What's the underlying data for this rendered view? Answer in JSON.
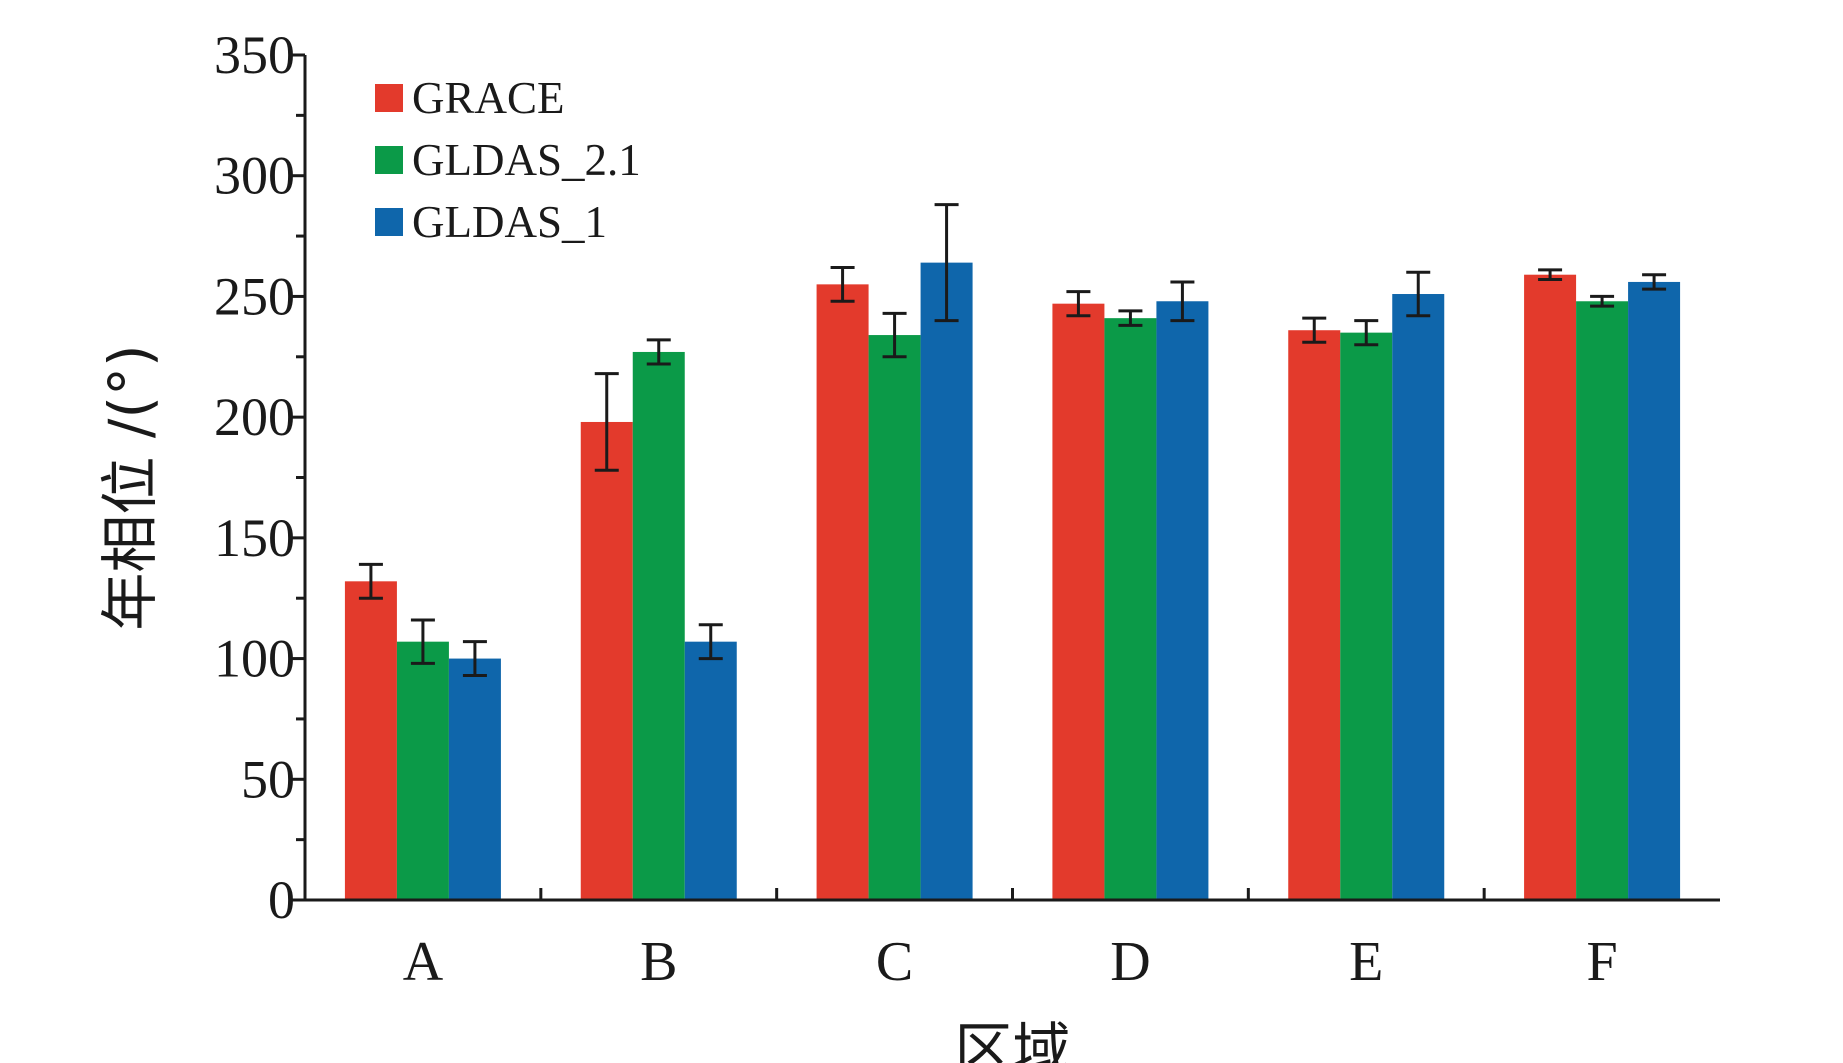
{
  "chart_data": {
    "type": "bar",
    "title": "",
    "xlabel": "区域",
    "ylabel": "年相位 /(°)",
    "categories": [
      "A",
      "B",
      "C",
      "D",
      "E",
      "F"
    ],
    "ylim": [
      0,
      350
    ],
    "yticks": [
      "0",
      "50",
      "100",
      "150",
      "200",
      "250",
      "300",
      "350"
    ],
    "grid": false,
    "legend_position": "top-left",
    "series": [
      {
        "name": "GRACE",
        "color": "#e33a2c",
        "values": [
          132,
          198,
          255,
          247,
          236,
          259
        ],
        "error": [
          7,
          20,
          7,
          5,
          5,
          2
        ]
      },
      {
        "name": "GLDAS_2.1",
        "color": "#0b9a48",
        "values": [
          107,
          227,
          234,
          241,
          235,
          248
        ],
        "error": [
          9,
          5,
          9,
          3,
          5,
          2
        ]
      },
      {
        "name": "GLDAS_1",
        "color": "#0f66ab",
        "values": [
          100,
          107,
          264,
          248,
          251,
          256
        ],
        "error": [
          7,
          7,
          24,
          8,
          9,
          3
        ]
      }
    ]
  }
}
